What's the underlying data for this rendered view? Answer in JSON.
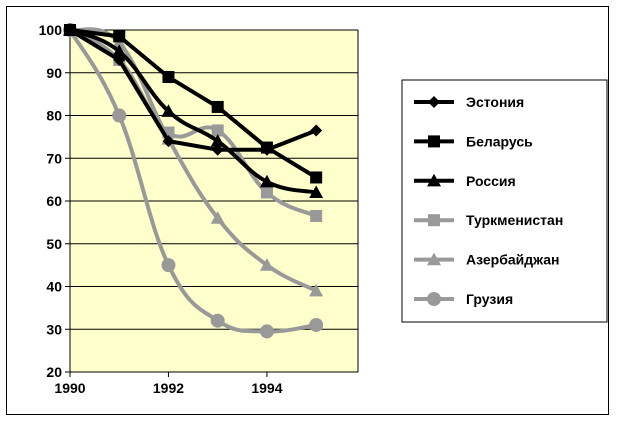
{
  "chart_data": {
    "type": "line",
    "title": "",
    "xlabel": "",
    "ylabel": "",
    "x": [
      1990,
      1991,
      1992,
      1993,
      1994,
      1995
    ],
    "x_ticks": [
      "1990",
      "1992",
      "1994"
    ],
    "xlim": [
      1990,
      1995.85
    ],
    "ylim": [
      20,
      100
    ],
    "y_ticks": [
      "20",
      "30",
      "40",
      "50",
      "60",
      "70",
      "80",
      "90",
      "100"
    ],
    "grid": true,
    "legend_position": "right",
    "plot_background": "#ffffcc",
    "series": [
      {
        "name": "Эстония",
        "color": "#000000",
        "marker": "diamond",
        "values": [
          100,
          93,
          74,
          72,
          72,
          76.5
        ],
        "smooth": false
      },
      {
        "name": "Беларусь",
        "color": "#000000",
        "marker": "square",
        "values": [
          100,
          98.5,
          89,
          82,
          72.5,
          65.5
        ],
        "smooth": false
      },
      {
        "name": "Россия",
        "color": "#000000",
        "marker": "triangle",
        "values": [
          100,
          95,
          81,
          74,
          64.5,
          62
        ],
        "smooth": true
      },
      {
        "name": "Туркменистан",
        "color": "#999999",
        "marker": "square",
        "values": [
          100,
          93,
          76,
          76.5,
          62,
          56.5
        ],
        "smooth": true
      },
      {
        "name": "Азербайджан",
        "color": "#999999",
        "marker": "triangle",
        "values": [
          100,
          97,
          74.5,
          56,
          45,
          39
        ],
        "smooth": true
      },
      {
        "name": "Грузия",
        "color": "#999999",
        "marker": "circle",
        "values": [
          100,
          80,
          45,
          32,
          29.5,
          31
        ],
        "smooth": true
      }
    ]
  }
}
